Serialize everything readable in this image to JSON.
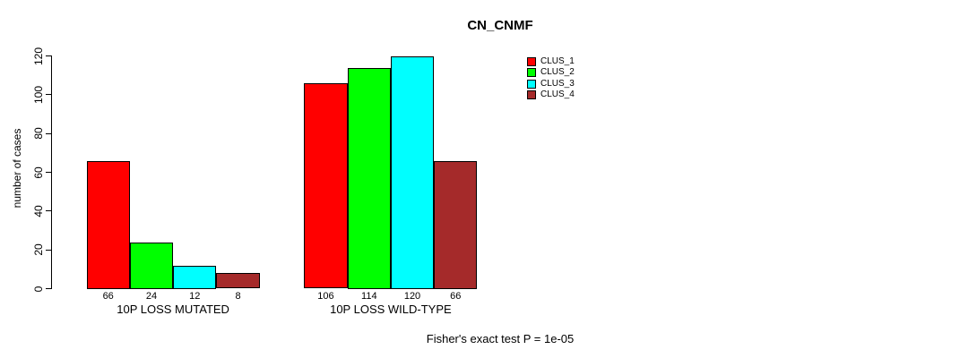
{
  "title": "CN_CNMF",
  "y_axis": {
    "label": "number of cases",
    "ticks": [
      0,
      20,
      40,
      60,
      80,
      100,
      120
    ]
  },
  "footer": "Fisher's exact test P = 1e-05",
  "legend": [
    {
      "label": "CLUS_1",
      "color": "#FF0000"
    },
    {
      "label": "CLUS_2",
      "color": "#00FF00"
    },
    {
      "label": "CLUS_3",
      "color": "#00FFFF"
    },
    {
      "label": "CLUS_4",
      "color": "#A52A2A"
    }
  ],
  "chart_data": {
    "type": "bar",
    "title": "CN_CNMF",
    "ylabel": "number of cases",
    "ylim": [
      0,
      120
    ],
    "yticks": [
      0,
      20,
      40,
      60,
      80,
      100,
      120
    ],
    "grid": false,
    "legend_position": "top-right",
    "categories": [
      "10P LOSS MUTATED",
      "10P LOSS WILD-TYPE"
    ],
    "series": [
      {
        "name": "CLUS_1",
        "color": "#FF0000",
        "values": [
          66,
          106
        ]
      },
      {
        "name": "CLUS_2",
        "color": "#00FF00",
        "values": [
          24,
          114
        ]
      },
      {
        "name": "CLUS_3",
        "color": "#00FFFF",
        "values": [
          12,
          120
        ]
      },
      {
        "name": "CLUS_4",
        "color": "#A52A2A",
        "values": [
          8,
          66
        ]
      }
    ],
    "bar_value_labels": [
      [
        66,
        24,
        12,
        8
      ],
      [
        106,
        114,
        120,
        66
      ]
    ],
    "annotation": "Fisher's exact test P = 1e-05"
  }
}
